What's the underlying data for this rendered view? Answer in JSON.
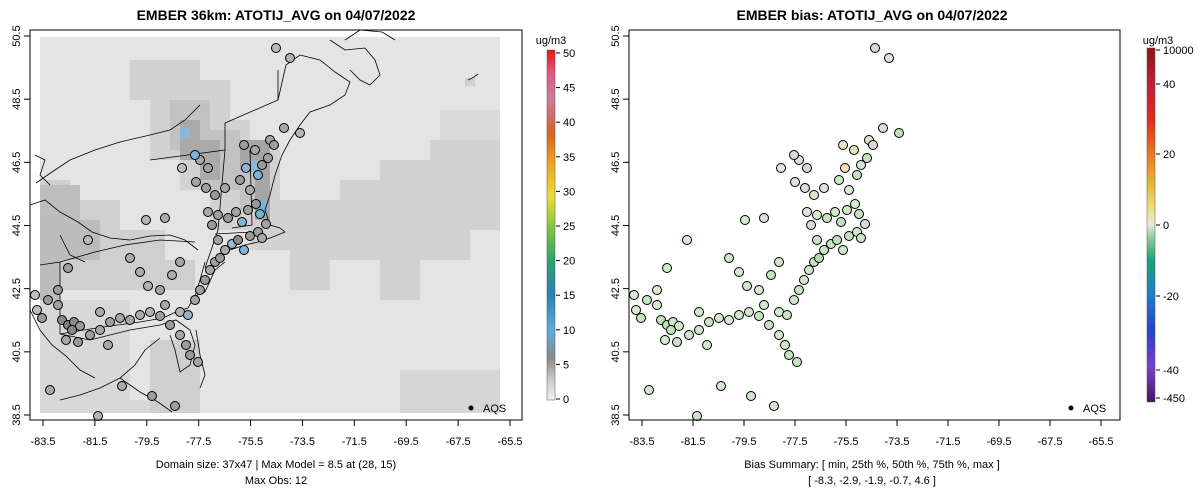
{
  "left_panel": {
    "title": "EMBER 36km: ATOTIJ_AVG on 04/07/2022",
    "units": "ug/m3",
    "x_ticks": [
      "-83.5",
      "-81.5",
      "-79.5",
      "-77.5",
      "-75.5",
      "-73.5",
      "-71.5",
      "-69.5",
      "-67.5",
      "-65.5"
    ],
    "y_ticks": [
      "38.5",
      "40.5",
      "42.5",
      "44.5",
      "46.5",
      "48.5",
      "50.5"
    ],
    "colorbar_ticks": [
      "0",
      "5",
      "10",
      "15",
      "20",
      "25",
      "30",
      "35",
      "40",
      "45",
      "50"
    ],
    "legend_label": "AQS",
    "footer_line1": "Domain size: 37x47 | Max Model = 8.5 at (28, 15)",
    "footer_line2": "Max Obs: 12"
  },
  "right_panel": {
    "title": "EMBER bias: ATOTIJ_AVG on 04/07/2022",
    "units": "ug/m3",
    "x_ticks": [
      "-83.5",
      "-81.5",
      "-79.5",
      "-77.5",
      "-75.5",
      "-73.5",
      "-71.5",
      "-69.5",
      "-67.5",
      "-65.5"
    ],
    "y_ticks": [
      "38.5",
      "40.5",
      "42.5",
      "44.5",
      "46.5",
      "48.5",
      "50.5"
    ],
    "colorbar_ticks": [
      "10000",
      "40",
      "20",
      "0",
      "-20",
      "-40",
      "-450"
    ],
    "legend_label": "AQS",
    "footer_line1": "Bias Summary: [ min, 25th %, 50th %, 75th %, max ]",
    "footer_line2": "[ -8.3,   -2.9,   -1.9,   -0.7,   4.6 ]"
  },
  "colors": {
    "model_low": "#e4e4e4",
    "model_mid": "#a8a8a8",
    "model_high": "#79b4d4",
    "bias_near_zero": "#dcdcdc",
    "bias_negative": "#c7e3c1"
  }
}
